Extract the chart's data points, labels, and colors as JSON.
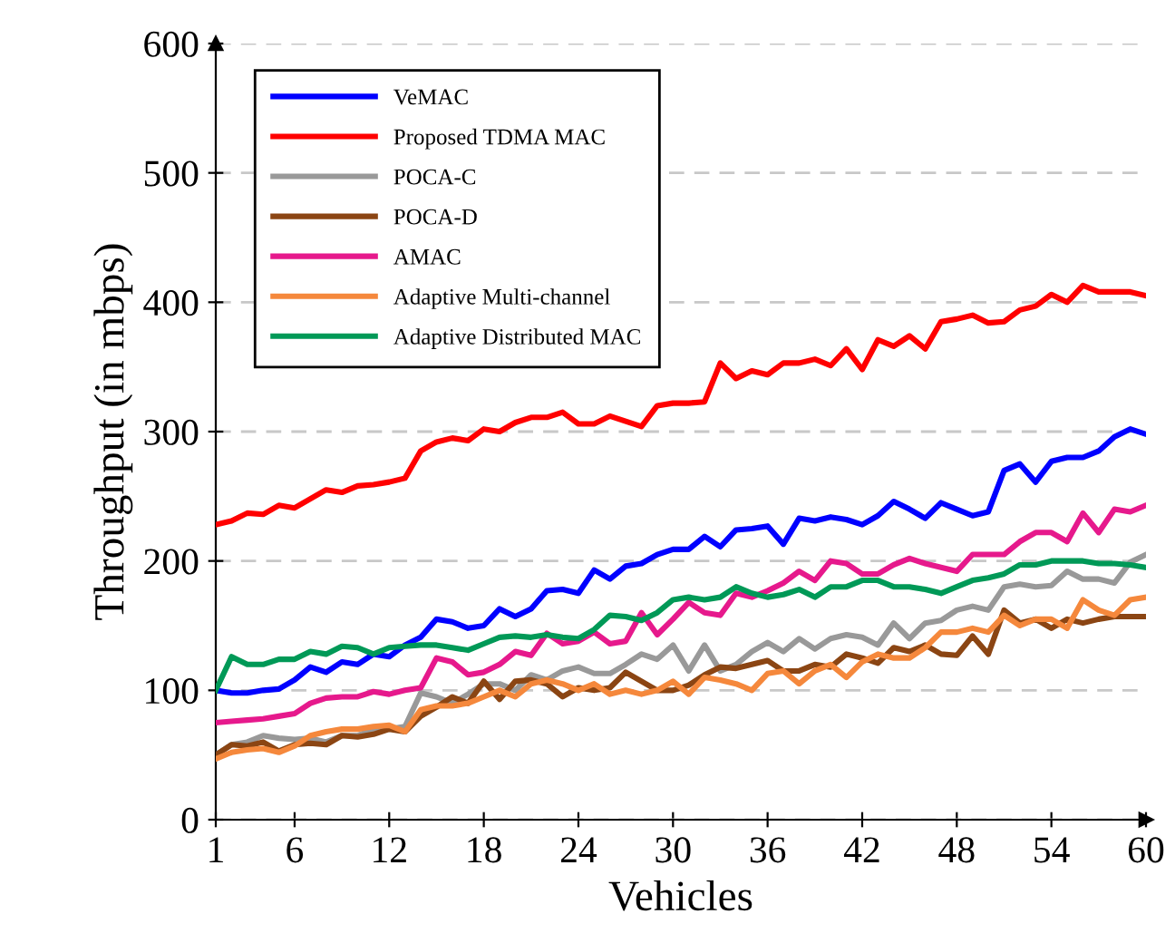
{
  "chart_data": {
    "type": "line",
    "xlabel": "Vehicles",
    "ylabel": "Throughput (in mbps)",
    "x": [
      1,
      2,
      3,
      4,
      5,
      6,
      7,
      8,
      9,
      10,
      11,
      12,
      13,
      14,
      15,
      16,
      17,
      18,
      19,
      20,
      21,
      22,
      23,
      24,
      25,
      26,
      27,
      28,
      29,
      30,
      31,
      32,
      33,
      34,
      35,
      36,
      37,
      38,
      39,
      40,
      41,
      42,
      43,
      44,
      45,
      46,
      47,
      48,
      49,
      50,
      51,
      52,
      53,
      54,
      55,
      56,
      57,
      58,
      59,
      60
    ],
    "xlim": [
      1,
      60
    ],
    "xticks": [
      1,
      6,
      12,
      18,
      24,
      30,
      36,
      42,
      48,
      54,
      60
    ],
    "ylim": [
      0,
      600
    ],
    "yticks": [
      0,
      100,
      200,
      300,
      400,
      500,
      600
    ],
    "grid": "y",
    "legend": "top left",
    "marker": "none",
    "line_style": "solid",
    "series": [
      {
        "name": "VeMAC",
        "color": "#0000ff",
        "values": [
          100,
          98,
          98,
          100,
          101,
          108,
          118,
          114,
          122,
          120,
          128,
          126,
          135,
          141,
          155,
          153,
          148,
          150,
          163,
          157,
          163,
          177,
          178,
          175,
          193,
          186,
          196,
          198,
          205,
          209,
          209,
          219,
          211,
          224,
          225,
          227,
          213,
          233,
          231,
          234,
          232,
          228,
          235,
          246,
          240,
          233,
          245,
          240,
          235,
          238,
          270,
          275,
          261,
          277,
          280,
          280,
          285,
          296,
          302,
          298
        ]
      },
      {
        "name": "Proposed TDMA MAC",
        "color": "#ff0000",
        "values": [
          228,
          231,
          237,
          236,
          243,
          241,
          248,
          255,
          253,
          258,
          259,
          261,
          264,
          285,
          292,
          295,
          293,
          302,
          300,
          307,
          311,
          311,
          315,
          306,
          306,
          312,
          308,
          304,
          320,
          322,
          322,
          323,
          353,
          341,
          347,
          344,
          353,
          353,
          356,
          351,
          364,
          348,
          371,
          366,
          374,
          364,
          385,
          387,
          390,
          384,
          385,
          394,
          397,
          406,
          400,
          413,
          408,
          408,
          408,
          405
        ]
      },
      {
        "name": "POCA-C",
        "color": "#999999",
        "values": [
          50,
          58,
          60,
          65,
          63,
          62,
          63,
          60,
          65,
          65,
          70,
          70,
          72,
          98,
          95,
          90,
          97,
          105,
          105,
          100,
          112,
          108,
          115,
          118,
          113,
          113,
          120,
          128,
          124,
          135,
          115,
          135,
          115,
          120,
          130,
          137,
          130,
          140,
          132,
          140,
          143,
          141,
          135,
          152,
          140,
          152,
          154,
          162,
          165,
          162,
          180,
          182,
          180,
          181,
          192,
          186,
          186,
          183,
          199,
          205
        ]
      },
      {
        "name": "POCA-D",
        "color": "#8b4513",
        "values": [
          50,
          58,
          57,
          60,
          53,
          58,
          59,
          58,
          65,
          64,
          66,
          70,
          68,
          80,
          87,
          95,
          90,
          107,
          93,
          107,
          108,
          105,
          95,
          102,
          100,
          102,
          114,
          107,
          100,
          100,
          104,
          112,
          118,
          117,
          120,
          123,
          115,
          115,
          120,
          118,
          128,
          125,
          121,
          133,
          130,
          135,
          128,
          127,
          142,
          128,
          162,
          152,
          155,
          148,
          155,
          152,
          155,
          157,
          157,
          157
        ]
      },
      {
        "name": "AMAC",
        "color": "#e6198c",
        "values": [
          75,
          76,
          77,
          78,
          80,
          82,
          90,
          94,
          95,
          95,
          99,
          97,
          100,
          102,
          125,
          122,
          112,
          114,
          120,
          130,
          127,
          144,
          136,
          138,
          145,
          136,
          138,
          160,
          143,
          155,
          168,
          160,
          158,
          175,
          172,
          177,
          183,
          192,
          185,
          200,
          198,
          190,
          190,
          197,
          202,
          198,
          195,
          192,
          205,
          205,
          205,
          215,
          222,
          222,
          215,
          237,
          222,
          240,
          238,
          243
        ]
      },
      {
        "name": "Adaptive Multi-channel",
        "color": "#f5883c",
        "values": [
          47,
          52,
          54,
          55,
          52,
          57,
          65,
          68,
          70,
          70,
          72,
          73,
          68,
          85,
          88,
          88,
          90,
          95,
          100,
          95,
          105,
          108,
          105,
          100,
          105,
          97,
          100,
          97,
          100,
          107,
          97,
          110,
          108,
          105,
          100,
          113,
          115,
          105,
          115,
          120,
          110,
          122,
          128,
          125,
          125,
          133,
          145,
          145,
          148,
          145,
          158,
          150,
          155,
          155,
          148,
          170,
          162,
          158,
          170,
          172
        ]
      },
      {
        "name": "Adaptive Distributed MAC",
        "color": "#009957",
        "values": [
          100,
          126,
          120,
          120,
          124,
          124,
          130,
          128,
          134,
          133,
          128,
          133,
          134,
          135,
          135,
          133,
          131,
          136,
          141,
          142,
          141,
          143,
          141,
          140,
          147,
          158,
          157,
          154,
          160,
          170,
          172,
          170,
          172,
          180,
          175,
          172,
          174,
          178,
          172,
          180,
          180,
          185,
          185,
          180,
          180,
          178,
          175,
          180,
          185,
          187,
          190,
          197,
          197,
          200,
          200,
          200,
          198,
          198,
          197,
          195
        ]
      }
    ]
  }
}
